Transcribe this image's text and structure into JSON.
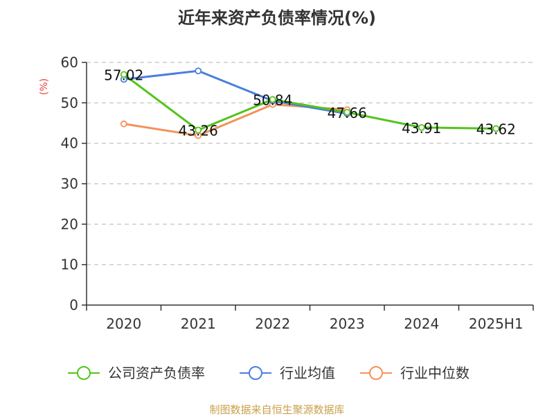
{
  "chart_data": {
    "type": "line",
    "title": "近年来资产负债率情况(%)",
    "y_unit": "(%)",
    "categories": [
      "2020",
      "2021",
      "2022",
      "2023",
      "2024",
      "2025H1"
    ],
    "ylim": [
      0,
      60
    ],
    "yticks": [
      0,
      10,
      20,
      30,
      40,
      50,
      60
    ],
    "grid": true,
    "legend_position": "bottom",
    "series": [
      {
        "name": "公司资产负债率",
        "color": "#52c41a",
        "values": [
          57.02,
          43.26,
          50.84,
          47.66,
          43.91,
          43.62
        ],
        "labels": [
          "57.02",
          "43.26",
          "50.84",
          "47.66",
          "43.91",
          "43.62"
        ]
      },
      {
        "name": "行业均值",
        "color": "#4a7fdc",
        "values": [
          55.8,
          57.9,
          50.5,
          47.3,
          null,
          null
        ]
      },
      {
        "name": "行业中位数",
        "color": "#f4915a",
        "values": [
          44.8,
          41.9,
          49.6,
          48.3,
          null,
          null
        ]
      }
    ],
    "source": "制图数据来自恒生聚源数据库"
  }
}
